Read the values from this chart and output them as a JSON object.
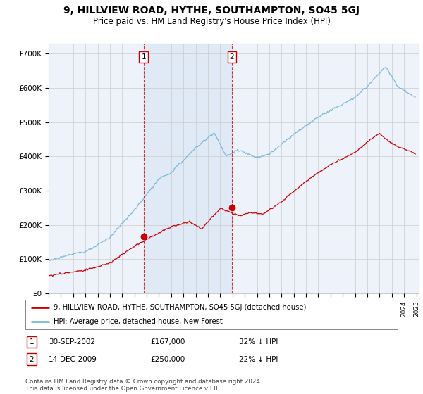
{
  "title": "9, HILLVIEW ROAD, HYTHE, SOUTHAMPTON, SO45 5GJ",
  "subtitle": "Price paid vs. HM Land Registry's House Price Index (HPI)",
  "title_fontsize": 10,
  "subtitle_fontsize": 8.5,
  "ylabel_ticks": [
    "£0",
    "£100K",
    "£200K",
    "£300K",
    "£400K",
    "£500K",
    "£600K",
    "£700K"
  ],
  "ytick_values": [
    0,
    100000,
    200000,
    300000,
    400000,
    500000,
    600000,
    700000
  ],
  "ylim": [
    0,
    730000
  ],
  "xlim_start": 1995.0,
  "xlim_end": 2025.2,
  "sale1_date": 2002.75,
  "sale1_price": 167000,
  "sale1_label": "1",
  "sale1_text": "30-SEP-2002",
  "sale1_amount": "£167,000",
  "sale1_pct": "32% ↓ HPI",
  "sale2_date": 2009.95,
  "sale2_price": 250000,
  "sale2_label": "2",
  "sale2_text": "14-DEC-2009",
  "sale2_amount": "£250,000",
  "sale2_pct": "22% ↓ HPI",
  "hpi_color": "#7ab8d9",
  "price_color": "#cc0000",
  "bg_color": "#eef2fa",
  "shade_color": "#dae8f5",
  "grid_color": "#cccccc",
  "marker_line_color": "#cc0000",
  "marker_box_color": "#cc0000",
  "legend_line1": "9, HILLVIEW ROAD, HYTHE, SOUTHAMPTON, SO45 5GJ (detached house)",
  "legend_line2": "HPI: Average price, detached house, New Forest",
  "footer": "Contains HM Land Registry data © Crown copyright and database right 2024.\nThis data is licensed under the Open Government Licence v3.0."
}
